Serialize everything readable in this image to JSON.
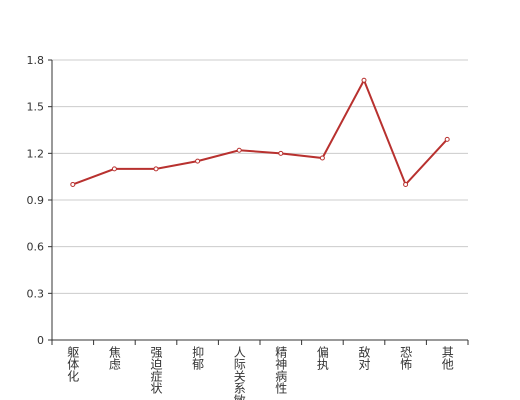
{
  "chart_data": {
    "type": "line",
    "categories": [
      "躯体化",
      "焦虑",
      "强迫症状",
      "抑郁",
      "人际关系敏感",
      "精神病性",
      "偏执",
      "敌对",
      "恐怖",
      "其他"
    ],
    "values": [
      1.0,
      1.1,
      1.1,
      1.15,
      1.22,
      1.2,
      1.17,
      1.67,
      1.0,
      1.29
    ],
    "color": "#b8312f",
    "ylim": [
      0,
      1.8
    ],
    "yticks": [
      0,
      0.3,
      0.6,
      0.9,
      1.2,
      1.5,
      1.8
    ],
    "grid": true
  }
}
